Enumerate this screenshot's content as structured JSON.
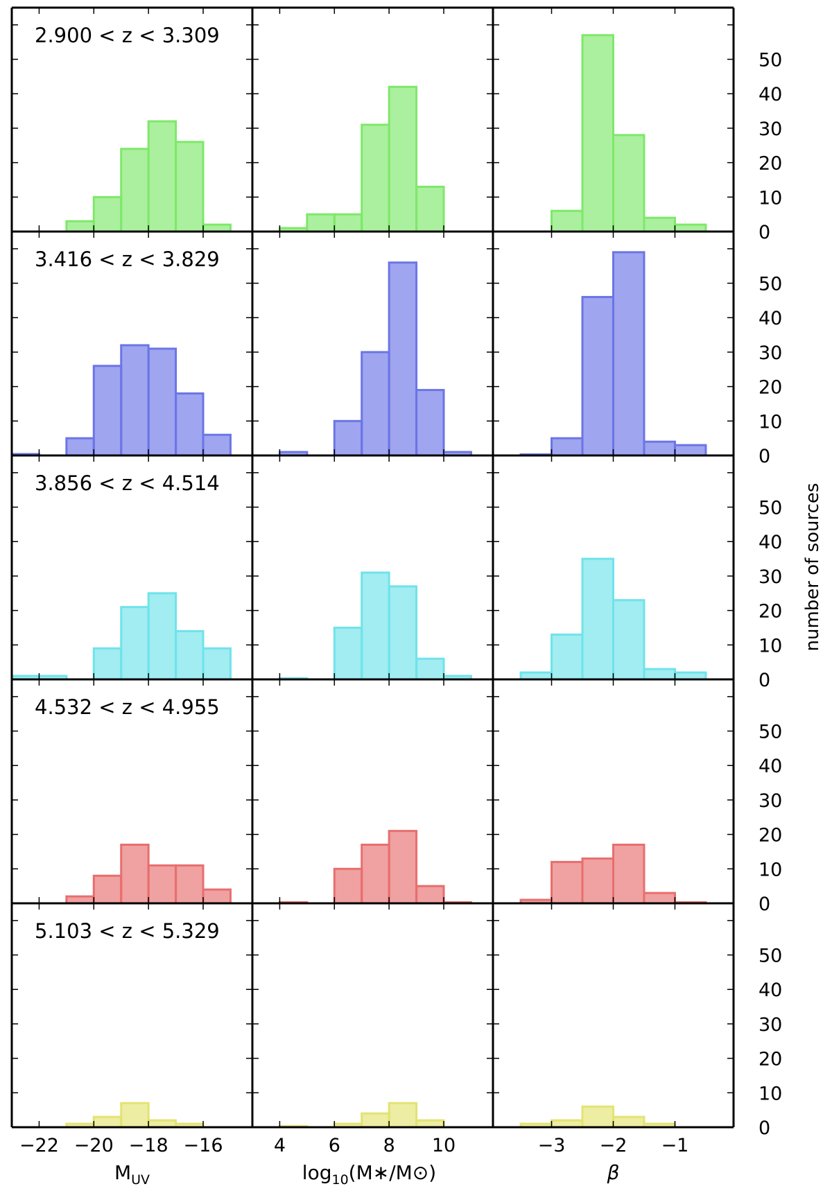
{
  "chart_data": {
    "type": "bar",
    "layout": "grid 5 rows x 3 columns of histograms, shared axes",
    "ylabel": "number of sources",
    "ylim": [
      0,
      65
    ],
    "yticks": [
      0,
      10,
      20,
      30,
      40,
      50
    ],
    "columns": [
      {
        "xlabel": "M",
        "xlabel_sub": "UV",
        "xlim": [
          -23,
          -14.2
        ],
        "xticks": [
          -22,
          -20,
          -18,
          -16
        ],
        "xtick_labels": [
          "−22",
          "−20",
          "−18",
          "−16"
        ],
        "bin_edges": [
          -23,
          -22,
          -21,
          -20,
          -19,
          -18,
          -17,
          -16,
          -15
        ]
      },
      {
        "xlabel": "log",
        "xlabel_sub": "10",
        "xlabel_rest": "(M∗/M⊙)",
        "xlim": [
          3,
          11.8
        ],
        "xticks": [
          4,
          6,
          8,
          10
        ],
        "xtick_labels": [
          "4",
          "6",
          "8",
          "10"
        ],
        "bin_edges": [
          4,
          5,
          6,
          7,
          8,
          9,
          10,
          11
        ]
      },
      {
        "xlabel": "β",
        "xlim": [
          -3.95,
          -0.05
        ],
        "xticks": [
          -3,
          -2,
          -1
        ],
        "xtick_labels": [
          "−3",
          "−2",
          "−1"
        ],
        "bin_edges": [
          -3.5,
          -3,
          -2.5,
          -2,
          -1.5,
          -1,
          -0.5
        ]
      }
    ],
    "rows": [
      {
        "label": "2.900 < z < 3.309",
        "color": "#7ee86a",
        "values": [
          [
            0,
            0,
            3,
            10,
            24,
            32,
            26,
            2
          ],
          [
            1,
            5,
            5,
            31,
            42,
            13,
            0
          ],
          [
            0,
            6,
            57,
            28,
            4,
            2
          ]
        ]
      },
      {
        "label": "3.416 < z < 3.829",
        "color": "#6b75e6",
        "values": [
          [
            0.4,
            0,
            5,
            26,
            32,
            31,
            18,
            6
          ],
          [
            1,
            0,
            10,
            30,
            56,
            19,
            1
          ],
          [
            0.3,
            5,
            46,
            59,
            4,
            3
          ]
        ]
      },
      {
        "label": "3.856 < z < 4.514",
        "color": "#6fe3ea",
        "values": [
          [
            1,
            1,
            0,
            9,
            21,
            25,
            14,
            9
          ],
          [
            0.3,
            0,
            15,
            31,
            27,
            6,
            1
          ],
          [
            2,
            13,
            35,
            23,
            3,
            2
          ]
        ]
      },
      {
        "label": "4.532 < z < 4.955",
        "color": "#e86e6e",
        "values": [
          [
            0,
            0,
            2,
            8,
            17,
            11,
            11,
            4
          ],
          [
            0.3,
            0,
            10,
            17,
            21,
            5,
            0.3
          ],
          [
            1,
            12,
            13,
            17,
            3,
            0.3
          ]
        ]
      },
      {
        "label": "5.103 < z < 5.329",
        "color": "#e3e372",
        "values": [
          [
            0,
            0,
            1,
            3,
            7,
            2,
            1,
            0
          ],
          [
            0.3,
            0,
            1,
            4,
            7,
            2,
            0
          ],
          [
            1,
            2,
            6,
            3,
            1,
            0
          ]
        ]
      }
    ]
  }
}
